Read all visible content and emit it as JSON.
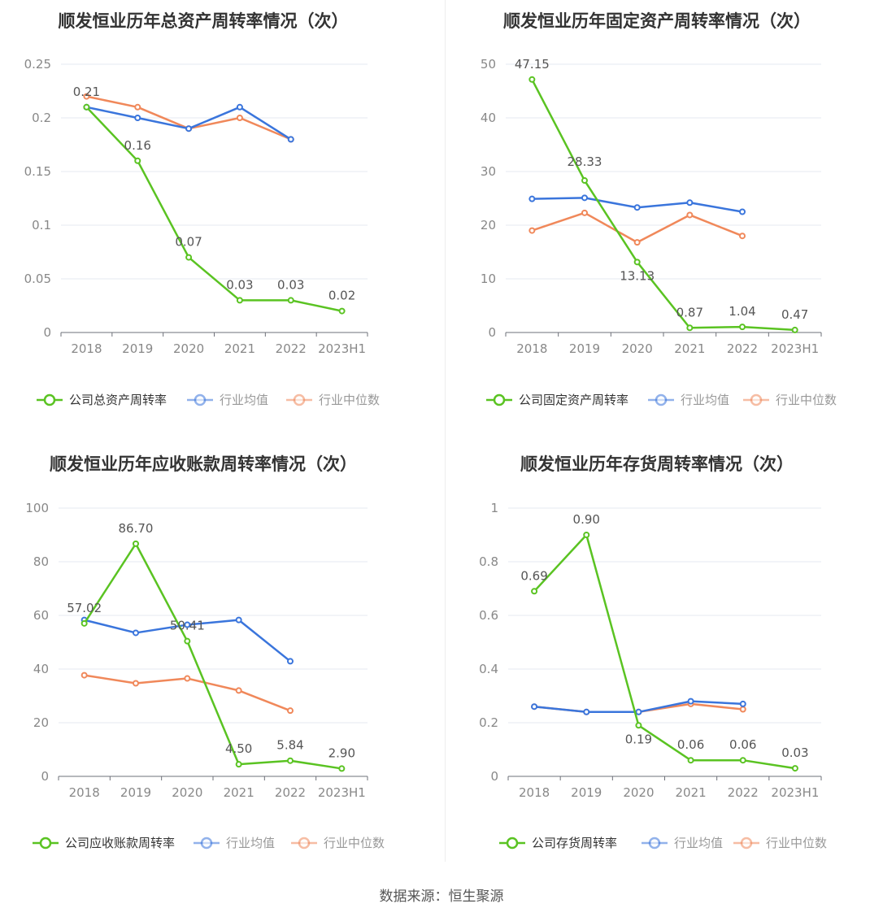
{
  "source_text": "数据来源：恒生聚源",
  "colors": {
    "company": "#5ac322",
    "avg": "#3a75dc",
    "median": "#f0885a"
  },
  "chart_data": [
    {
      "type": "line",
      "title": "顺发恒业历年总资产周转率情况（次）",
      "categories": [
        "2018",
        "2019",
        "2020",
        "2021",
        "2022",
        "2023H1"
      ],
      "ylim": [
        0,
        0.25
      ],
      "yticks": [
        "0",
        "0.05",
        "0.1",
        "0.15",
        "0.2",
        "0.25"
      ],
      "ytick_values": [
        0,
        0.05,
        0.1,
        0.15,
        0.2,
        0.25
      ],
      "legend_position": "bottom",
      "grid": true,
      "series": [
        {
          "name": "公司总资产周转率",
          "key": "company",
          "values": [
            0.21,
            0.16,
            0.07,
            0.03,
            0.03,
            0.02
          ],
          "labels": [
            "0.21",
            "0.16",
            "0.07",
            "0.03",
            "0.03",
            "0.02"
          ]
        },
        {
          "name": "行业均值",
          "key": "avg",
          "values": [
            0.21,
            0.2,
            0.19,
            0.21,
            0.18,
            null
          ]
        },
        {
          "name": "行业中位数",
          "key": "median",
          "values": [
            0.22,
            0.21,
            0.19,
            0.2,
            0.18,
            null
          ]
        }
      ]
    },
    {
      "type": "line",
      "title": "顺发恒业历年固定资产周转率情况（次）",
      "categories": [
        "2018",
        "2019",
        "2020",
        "2021",
        "2022",
        "2023H1"
      ],
      "ylim": [
        0,
        50
      ],
      "yticks": [
        "0",
        "10",
        "20",
        "30",
        "40",
        "50"
      ],
      "ytick_values": [
        0,
        10,
        20,
        30,
        40,
        50
      ],
      "legend_position": "bottom",
      "grid": true,
      "series": [
        {
          "name": "公司固定资产周转率",
          "key": "company",
          "values": [
            47.15,
            28.33,
            13.13,
            0.87,
            1.04,
            0.47
          ],
          "labels": [
            "47.15",
            "28.33",
            "13.13",
            "0.87",
            "1.04",
            "0.47"
          ]
        },
        {
          "name": "行业均值",
          "key": "avg",
          "values": [
            24.9,
            25.1,
            23.3,
            24.2,
            22.5,
            null
          ]
        },
        {
          "name": "行业中位数",
          "key": "median",
          "values": [
            19.0,
            22.3,
            16.8,
            21.9,
            18.0,
            null
          ]
        }
      ]
    },
    {
      "type": "line",
      "title": "顺发恒业历年应收账款周转率情况（次）",
      "categories": [
        "2018",
        "2019",
        "2020",
        "2021",
        "2022",
        "2023H1"
      ],
      "ylim": [
        0,
        100
      ],
      "yticks": [
        "0",
        "20",
        "40",
        "60",
        "80",
        "100"
      ],
      "ytick_values": [
        0,
        20,
        40,
        60,
        80,
        100
      ],
      "legend_position": "bottom",
      "grid": true,
      "series": [
        {
          "name": "公司应收账款周转率",
          "key": "company",
          "values": [
            57.02,
            86.7,
            50.41,
            4.5,
            5.84,
            2.9
          ],
          "labels": [
            "57.02",
            "86.70",
            "50.41",
            "4.50",
            "5.84",
            "2.90"
          ]
        },
        {
          "name": "行业均值",
          "key": "avg",
          "values": [
            58.3,
            53.5,
            56.5,
            58.3,
            42.9,
            null
          ]
        },
        {
          "name": "行业中位数",
          "key": "median",
          "values": [
            37.7,
            34.7,
            36.5,
            32.0,
            24.5,
            null
          ]
        }
      ]
    },
    {
      "type": "line",
      "title": "顺发恒业历年存货周转率情况（次）",
      "categories": [
        "2018",
        "2019",
        "2020",
        "2021",
        "2022",
        "2023H1"
      ],
      "ylim": [
        0,
        1
      ],
      "yticks": [
        "0",
        "0.2",
        "0.4",
        "0.6",
        "0.8",
        "1"
      ],
      "ytick_values": [
        0,
        0.2,
        0.4,
        0.6,
        0.8,
        1
      ],
      "legend_position": "bottom",
      "grid": true,
      "series": [
        {
          "name": "公司存货周转率",
          "key": "company",
          "values": [
            0.69,
            0.9,
            0.19,
            0.06,
            0.06,
            0.03
          ],
          "labels": [
            "0.69",
            "0.90",
            "0.19",
            "0.06",
            "0.06",
            "0.03"
          ]
        },
        {
          "name": "行业均值",
          "key": "avg",
          "values": [
            0.26,
            0.24,
            0.24,
            0.28,
            0.27,
            null
          ]
        },
        {
          "name": "行业中位数",
          "key": "median",
          "values": [
            0.26,
            0.24,
            0.24,
            0.27,
            0.25,
            null
          ]
        }
      ]
    }
  ]
}
